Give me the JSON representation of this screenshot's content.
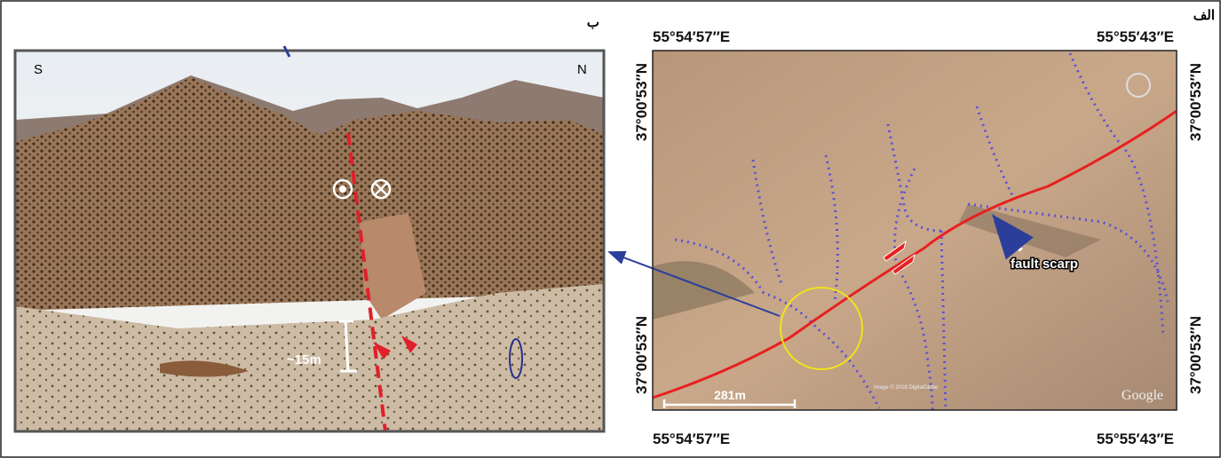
{
  "labels": {
    "panel_a": "الف",
    "panel_b": "ب"
  },
  "map": {
    "coords_top": [
      "55°54′57″E",
      "55°55′43″E"
    ],
    "coords_bottom": [
      "55°54′57″E",
      "55°55′43″E"
    ],
    "coords_left": [
      "37°00′53″N",
      "37°00′53″N"
    ],
    "coords_right": [
      "37°00′53″N",
      "37°00′53″N"
    ],
    "annotation": "fault scarp",
    "scale": "281m",
    "credit": "Image © 2018 DigitalGlobe",
    "logo": "Google"
  },
  "photo": {
    "left_dir": "S",
    "right_dir": "N",
    "offset": "~15m"
  }
}
